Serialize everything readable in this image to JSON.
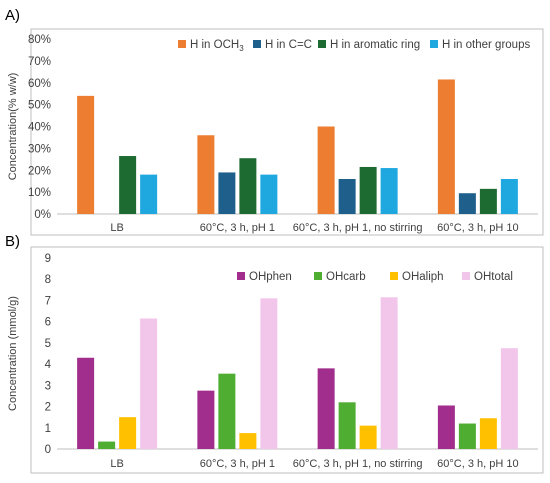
{
  "panels": [
    {
      "panel_label": "A)",
      "chart_data": {
        "type": "bar",
        "ylabel": "Concentration(% w/w)",
        "xlabel": "",
        "ylim": [
          0,
          80
        ],
        "yticks": [
          "0%",
          "10%",
          "20%",
          "30%",
          "40%",
          "50%",
          "60%",
          "70%",
          "80%"
        ],
        "categories": [
          "LB",
          "60°C, 3 h, pH 1",
          "60°C, 3 h, pH 1, no stirring",
          "60°C, 3 h, pH 10"
        ],
        "legend_position": "top-right",
        "grid": false,
        "series": [
          {
            "name": "H in OCH3",
            "color": "#ED7D31",
            "values": [
              54,
              36,
              40,
              61.5
            ]
          },
          {
            "name": "H in C=C",
            "color": "#1F5F8B",
            "values": [
              0,
              19,
              16,
              9.5
            ]
          },
          {
            "name": "H in aromatic ring",
            "color": "#1E6B32",
            "values": [
              26.5,
              25.5,
              21.5,
              11.5
            ]
          },
          {
            "name": "H in other groups",
            "color": "#1FA8E0",
            "values": [
              18,
              18,
              21,
              16
            ]
          }
        ]
      }
    },
    {
      "panel_label": "B)",
      "chart_data": {
        "type": "bar",
        "ylabel": "Concentration (mmol/g)",
        "xlabel": "",
        "ylim": [
          0,
          9
        ],
        "yticks": [
          "0",
          "1",
          "2",
          "3",
          "4",
          "5",
          "6",
          "7",
          "8",
          "9"
        ],
        "categories": [
          "LB",
          "60°C, 3 h, pH 1",
          "60°C, 3 h, pH 1, no stirring",
          "60°C, 3 h, pH 10"
        ],
        "legend_position": "top-right",
        "grid": false,
        "series": [
          {
            "name": "OHphen",
            "color": "#A12E8C",
            "values": [
              4.3,
              2.75,
              3.8,
              2.05
            ]
          },
          {
            "name": "OHcarb",
            "color": "#4FAD32",
            "values": [
              0.35,
              3.55,
              2.2,
              1.2
            ]
          },
          {
            "name": "OHaliph",
            "color": "#FFC000",
            "values": [
              1.5,
              0.75,
              1.1,
              1.45
            ]
          },
          {
            "name": "OHtotal",
            "color": "#F2C6EA",
            "values": [
              6.15,
              7.1,
              7.15,
              4.75
            ]
          }
        ]
      }
    }
  ]
}
